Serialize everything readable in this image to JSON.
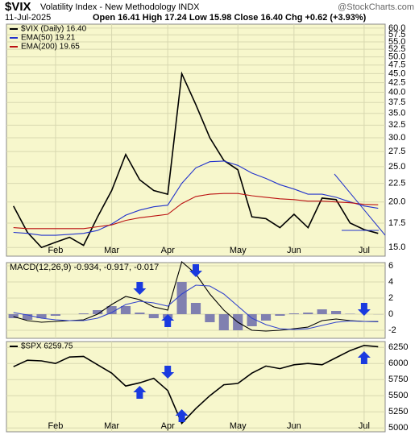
{
  "chart_data": [
    {
      "type": "line",
      "title": "$VIX",
      "subtitle": "Volatility Index - New Methodology INDX",
      "source": "@StockCharts.com",
      "date": "11-Jul-2025",
      "quote": "Open 16.41 High 17.24 Low 15.98 Close 16.40 Chg +0.62 (+3.93%)",
      "categories": [
        null,
        null,
        null,
        "Feb",
        null,
        null,
        null,
        "Mar",
        null,
        null,
        null,
        "Apr",
        null,
        null,
        null,
        null,
        "May",
        null,
        null,
        null,
        "Jun",
        null,
        null,
        null,
        null,
        "Jul",
        null
      ],
      "series": [
        {
          "name": "$VIX (Daily) 16.40",
          "color": "#000000",
          "values": [
            19.5,
            16.5,
            15.0,
            15.5,
            16.0,
            15.2,
            18.2,
            21.5,
            27.0,
            23.0,
            21.5,
            21.0,
            45.0,
            37.0,
            30.0,
            26.0,
            24.5,
            18.2,
            18.0,
            17.0,
            18.5,
            17.0,
            20.5,
            20.3,
            17.5,
            16.8,
            16.4
          ]
        },
        {
          "name": "EMA(50) 19.21",
          "color": "#2233cc",
          "values": [
            16.5,
            16.4,
            16.2,
            16.2,
            16.3,
            16.4,
            16.7,
            17.4,
            18.4,
            19.0,
            19.4,
            19.6,
            22.5,
            24.8,
            25.8,
            25.9,
            25.2,
            24.0,
            23.2,
            22.3,
            21.7,
            21.0,
            21.0,
            20.6,
            20.0,
            19.5,
            19.21
          ]
        },
        {
          "name": "EMA(200) 19.65",
          "color": "#bb1111",
          "values": [
            17.0,
            16.9,
            16.9,
            16.9,
            16.9,
            16.9,
            17.1,
            17.3,
            17.8,
            18.1,
            18.3,
            18.5,
            19.8,
            20.7,
            21.0,
            21.1,
            21.1,
            20.8,
            20.6,
            20.4,
            20.3,
            20.1,
            20.1,
            20.0,
            19.9,
            19.7,
            19.65
          ]
        }
      ],
      "log": true,
      "ylim": [
        14.2,
        61.5
      ],
      "grid": true,
      "yticks": [
        {
          "value": 15,
          "label": "15.0"
        },
        {
          "value": 17.5,
          "label": "17.5"
        },
        {
          "value": 20,
          "label": "20.0"
        },
        {
          "value": 22.5,
          "label": "22.5"
        },
        {
          "value": 25,
          "label": "25.0"
        },
        {
          "value": 27.5,
          "label": "27.5"
        },
        {
          "value": 30,
          "label": "30.0"
        },
        {
          "value": 32.5,
          "label": "32.5"
        },
        {
          "value": 35,
          "label": "35.0"
        },
        {
          "value": 37.5,
          "label": "37.5"
        },
        {
          "value": 40,
          "label": "40.0"
        },
        {
          "value": 42.5,
          "label": "42.5"
        },
        {
          "value": 45,
          "label": "45.0"
        },
        {
          "value": 47.5,
          "label": "47.5"
        },
        {
          "value": 50,
          "label": "50.0"
        },
        {
          "value": 52.5,
          "label": "52.5"
        },
        {
          "value": 55,
          "label": "55.0"
        },
        {
          "value": 57.5,
          "label": "57.5"
        },
        {
          "value": 60,
          "label": "60.0"
        }
      ]
    },
    {
      "type": "line",
      "title": "MACD(12,26,9) -0.934, -0.917, -0.017",
      "series": [
        {
          "type": "bar",
          "color": "#8080b0",
          "values": [
            -0.5,
            -0.7,
            -0.5,
            -0.2,
            0,
            0.1,
            0.5,
            1.0,
            1.0,
            0.2,
            -0.5,
            -0.5,
            4.0,
            1.4,
            -1.0,
            -2.0,
            -2.0,
            -1.5,
            -0.8,
            -0.2,
            0.1,
            0.2,
            0.6,
            0.4,
            0.05,
            0,
            -0.017
          ]
        },
        {
          "color": "#000000",
          "values": [
            -0.3,
            -0.8,
            -1.0,
            -0.9,
            -0.8,
            -0.7,
            0.0,
            1.2,
            2.2,
            1.8,
            0.9,
            0.5,
            6.5,
            5.0,
            2.5,
            0.5,
            -1.0,
            -2.0,
            -2.1,
            -2.0,
            -1.8,
            -1.6,
            -0.8,
            -0.6,
            -0.8,
            -0.9,
            -0.934
          ]
        },
        {
          "color": "#3344cc",
          "values": [
            0.2,
            -0.1,
            -0.5,
            -0.7,
            -0.8,
            -0.8,
            -0.5,
            0.2,
            1.2,
            1.6,
            1.4,
            1.0,
            2.5,
            3.6,
            3.5,
            2.5,
            1.0,
            -0.5,
            -1.3,
            -1.8,
            -1.9,
            -1.8,
            -1.4,
            -1.0,
            -0.85,
            -0.9,
            -0.917
          ]
        }
      ],
      "ylim": [
        -3,
        6.4
      ],
      "yticks": [
        -2,
        0,
        2,
        4,
        6
      ],
      "grid": true
    },
    {
      "type": "line",
      "categories": [
        null,
        null,
        null,
        "Feb",
        null,
        null,
        null,
        "Mar",
        null,
        null,
        null,
        "Apr",
        null,
        null,
        null,
        null,
        "May",
        null,
        null,
        null,
        "Jun",
        null,
        null,
        null,
        null,
        "Jul",
        null
      ],
      "series": [
        {
          "name": "$SPX 6259.75",
          "color": "#000000",
          "values": [
            5950,
            6050,
            6040,
            6000,
            6100,
            6110,
            5980,
            5850,
            5650,
            5700,
            5770,
            5580,
            5070,
            5300,
            5500,
            5670,
            5690,
            5850,
            5960,
            5920,
            5980,
            6000,
            5980,
            6090,
            6200,
            6280,
            6259.75
          ]
        }
      ],
      "ylim": [
        4940,
        6340
      ],
      "yticks": [
        5000,
        5250,
        5500,
        5750,
        6000,
        6250
      ],
      "grid": true
    }
  ]
}
